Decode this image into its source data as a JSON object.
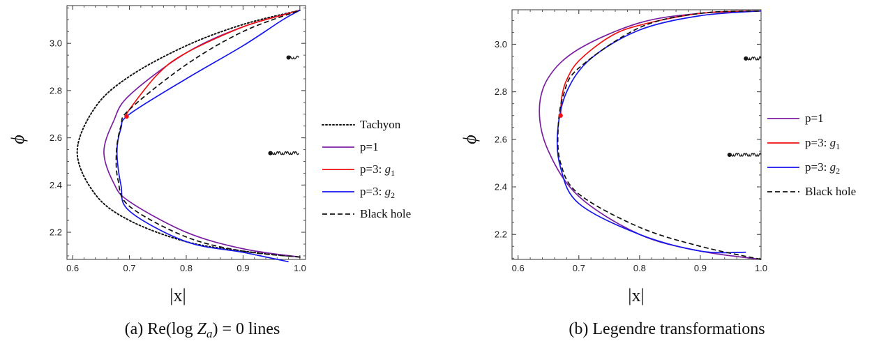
{
  "chart_data": [
    {
      "type": "line",
      "caption": "(a) Re(log Z_a) = 0 lines",
      "xlabel": "|x|",
      "ylabel": "ϕ",
      "xlim": [
        0.59,
        1.01
      ],
      "ylim": [
        2.085,
        3.16
      ],
      "xticks": [
        "0.6",
        "0.7",
        "0.8",
        "0.9",
        "1.0"
      ],
      "yticks": [
        "2.2",
        "2.4",
        "2.6",
        "2.8",
        "3.0"
      ],
      "legend_position": "right",
      "legend": [
        "Tachyon",
        "p=1",
        "p=3: g1",
        "p=3: g2",
        "Black hole"
      ],
      "series": [
        {
          "name": "Tachyon",
          "color": "#111111",
          "style": "dotted",
          "points": [
            [
              1.0,
              3.14
            ],
            [
              0.9,
              3.08
            ],
            [
              0.8,
              2.99
            ],
            [
              0.7,
              2.86
            ],
            [
              0.64,
              2.73
            ],
            [
              0.608,
              2.54
            ],
            [
              0.64,
              2.36
            ],
            [
              0.7,
              2.25
            ],
            [
              0.8,
              2.16
            ],
            [
              0.9,
              2.12
            ],
            [
              1.0,
              2.095
            ]
          ]
        },
        {
          "name": "p=1",
          "color": "#7b1fa2",
          "style": "solid",
          "points": [
            [
              1.0,
              3.14
            ],
            [
              0.9,
              3.07
            ],
            [
              0.8,
              2.96
            ],
            [
              0.7,
              2.78
            ],
            [
              0.672,
              2.67
            ],
            [
              0.655,
              2.54
            ],
            [
              0.672,
              2.41
            ],
            [
              0.7,
              2.33
            ],
            [
              0.8,
              2.2
            ],
            [
              0.9,
              2.13
            ],
            [
              1.0,
              2.095
            ]
          ]
        },
        {
          "name": "p=3: g1",
          "color": "#ee1111",
          "style": "solid",
          "points": [
            [
              0.695,
              2.69
            ],
            [
              0.7,
              2.72
            ],
            [
              0.75,
              2.87
            ],
            [
              0.8,
              2.96
            ],
            [
              0.9,
              3.07
            ],
            [
              0.97,
              3.12
            ],
            [
              1.0,
              3.14
            ]
          ]
        },
        {
          "name": "p=3: g2",
          "color": "#1616ee",
          "style": "solid",
          "points": [
            [
              0.98,
              2.075
            ],
            [
              0.9,
              2.115
            ],
            [
              0.8,
              2.16
            ],
            [
              0.7,
              2.29
            ],
            [
              0.685,
              2.4
            ],
            [
              0.678,
              2.54
            ],
            [
              0.685,
              2.64
            ],
            [
              0.7,
              2.7
            ],
            [
              0.8,
              2.85
            ],
            [
              0.9,
              2.99
            ],
            [
              0.97,
              3.1
            ],
            [
              1.0,
              3.14
            ]
          ]
        },
        {
          "name": "Black hole",
          "color": "#111111",
          "style": "dashed",
          "points": [
            [
              1.0,
              2.095
            ],
            [
              0.9,
              2.12
            ],
            [
              0.8,
              2.18
            ],
            [
              0.7,
              2.31
            ],
            [
              0.68,
              2.42
            ],
            [
              0.677,
              2.54
            ],
            [
              0.685,
              2.65
            ],
            [
              0.7,
              2.72
            ],
            [
              0.8,
              2.91
            ],
            [
              0.9,
              3.05
            ],
            [
              1.0,
              3.14
            ]
          ]
        }
      ],
      "markers": [
        {
          "series": "p=3: g1",
          "x": 0.695,
          "y": 2.69,
          "color": "#ee1111"
        }
      ],
      "annotations": [
        {
          "type": "wavy",
          "x_start": 0.98,
          "x_end": 0.998,
          "y": 2.94
        },
        {
          "type": "wavy",
          "x_start": 0.948,
          "x_end": 0.998,
          "y": 2.535
        }
      ]
    },
    {
      "type": "line",
      "caption": "(b) Legendre transformations",
      "xlabel": "|x|",
      "ylabel": "ϕ",
      "xlim": [
        0.59,
        1.0
      ],
      "ylim": [
        2.095,
        3.145
      ],
      "xticks": [
        "0.6",
        "0.7",
        "0.8",
        "0.9",
        "1.0"
      ],
      "yticks": [
        "2.2",
        "2.4",
        "2.6",
        "2.8",
        "3.0"
      ],
      "legend_position": "right",
      "legend": [
        "p=1",
        "p=3: g1",
        "p=3: g2",
        "Black hole"
      ],
      "series": [
        {
          "name": "p=1",
          "color": "#7b1fa2",
          "style": "solid",
          "points": [
            [
              1.0,
              3.14
            ],
            [
              0.9,
              3.13
            ],
            [
              0.8,
              3.09
            ],
            [
              0.7,
              2.98
            ],
            [
              0.65,
              2.86
            ],
            [
              0.635,
              2.72
            ],
            [
              0.65,
              2.55
            ],
            [
              0.7,
              2.36
            ],
            [
              0.8,
              2.2
            ],
            [
              0.9,
              2.13
            ],
            [
              1.0,
              2.095
            ]
          ]
        },
        {
          "name": "p=3: g1",
          "color": "#ee1111",
          "style": "solid",
          "points": [
            [
              0.67,
              2.7
            ],
            [
              0.672,
              2.78
            ],
            [
              0.68,
              2.85
            ],
            [
              0.7,
              2.93
            ],
            [
              0.75,
              3.03
            ],
            [
              0.8,
              3.08
            ],
            [
              0.9,
              3.13
            ],
            [
              1.0,
              3.14
            ]
          ]
        },
        {
          "name": "p=3: g2",
          "color": "#1616ee",
          "style": "solid",
          "points": [
            [
              0.975,
              2.125
            ],
            [
              0.9,
              2.13
            ],
            [
              0.8,
              2.2
            ],
            [
              0.7,
              2.33
            ],
            [
              0.67,
              2.48
            ],
            [
              0.665,
              2.63
            ],
            [
              0.68,
              2.8
            ],
            [
              0.72,
              2.94
            ],
            [
              0.8,
              3.06
            ],
            [
              0.9,
              3.12
            ],
            [
              1.0,
              3.14
            ]
          ]
        },
        {
          "name": "Black hole",
          "color": "#111111",
          "style": "dashed",
          "points": [
            [
              1.0,
              2.095
            ],
            [
              0.9,
              2.15
            ],
            [
              0.8,
              2.23
            ],
            [
              0.7,
              2.37
            ],
            [
              0.67,
              2.5
            ],
            [
              0.666,
              2.65
            ],
            [
              0.675,
              2.79
            ],
            [
              0.7,
              2.9
            ],
            [
              0.8,
              3.07
            ],
            [
              0.9,
              3.13
            ],
            [
              1.0,
              3.14
            ]
          ]
        }
      ],
      "markers": [
        {
          "series": "p=3: g1",
          "x": 0.67,
          "y": 2.7,
          "color": "#ee1111"
        }
      ],
      "annotations": [
        {
          "type": "wavy",
          "x_start": 0.975,
          "x_end": 1.0,
          "y": 2.94
        },
        {
          "type": "wavy",
          "x_start": 0.948,
          "x_end": 1.0,
          "y": 2.535
        }
      ]
    }
  ]
}
